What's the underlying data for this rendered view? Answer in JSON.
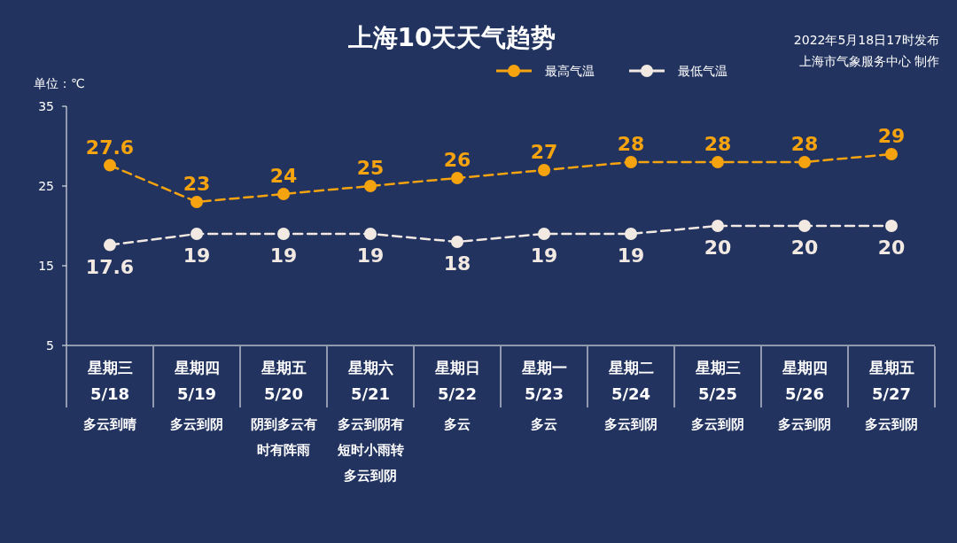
{
  "chart_data": {
    "type": "line",
    "title": "上海10天天气趋势",
    "annotations": [
      "2022年5月18日17时发布",
      "上海市气象服务中心 制作"
    ],
    "ylabel": "单位：℃",
    "categories": [
      "星期三\n5/18\n多云到晴",
      "星期四\n5/19\n多云到阴",
      "星期五\n5/20\n阴到多云有时有阵雨",
      "星期六\n5/21\n多云到阴有短时小雨转多云到阴",
      "星期日\n5/22\n多云",
      "星期一\n5/23\n多云",
      "星期二\n5/24\n多云到阴",
      "星期三\n5/25\n多云到阴",
      "星期四\n5/26\n多云到阴",
      "星期五\n5/27\n多云到阴"
    ],
    "series": [
      {
        "name": "最高气温",
        "color": "#f5a30f",
        "values": [
          27.6,
          23,
          24,
          25,
          26,
          27,
          28,
          28,
          28,
          29
        ]
      },
      {
        "name": "最低气温",
        "color": "#f3e9e3",
        "values": [
          17.6,
          19,
          19,
          19,
          18,
          19,
          19,
          20,
          20,
          20
        ]
      }
    ],
    "ylim": [
      5,
      35
    ],
    "yticks": [
      5,
      15,
      25,
      35
    ],
    "grid": false,
    "legend": "top right",
    "marker": "circle",
    "line_style": "dashed",
    "data_labels": true
  }
}
